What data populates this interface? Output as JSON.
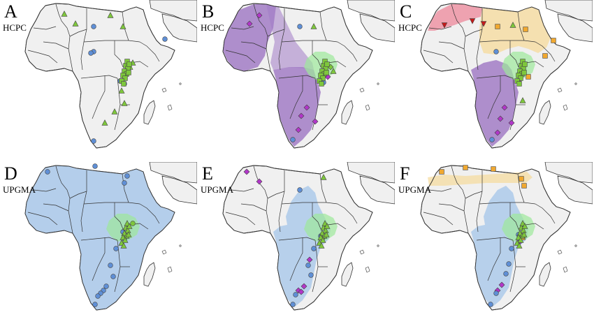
{
  "figure": {
    "panels": [
      {
        "letter": "A",
        "method": "HCPC",
        "regions": [],
        "markers": "a"
      },
      {
        "letter": "B",
        "method": "HCPC",
        "regions": [
          "purple",
          "green"
        ],
        "markers": "b"
      },
      {
        "letter": "C",
        "method": "HCPC",
        "regions": [
          "red",
          "yellow",
          "purple",
          "green"
        ],
        "markers": "c"
      },
      {
        "letter": "D",
        "method": "UPGMA",
        "regions": [
          "blue_full",
          "green"
        ],
        "markers": "d"
      },
      {
        "letter": "E",
        "method": "UPGMA",
        "regions": [
          "blue_partial",
          "green"
        ],
        "markers": "e"
      },
      {
        "letter": "F",
        "method": "UPGMA",
        "regions": [
          "yellow_north",
          "blue_partial",
          "green"
        ],
        "markers": "f"
      }
    ],
    "colors": {
      "land": "#f0f0f0",
      "border": "#333333",
      "purple_region": "#a27cc6",
      "green_region": "#9de89a",
      "blue_region": "#a9c8ea",
      "yellow_region": "#f6dca0",
      "red_region": "#ee8fa0",
      "marker_green": "#7ec73c",
      "marker_blue": "#5f8fd6",
      "marker_purple": "#b236c9",
      "marker_orange": "#f0a830",
      "marker_red": "#c41a1a"
    }
  }
}
